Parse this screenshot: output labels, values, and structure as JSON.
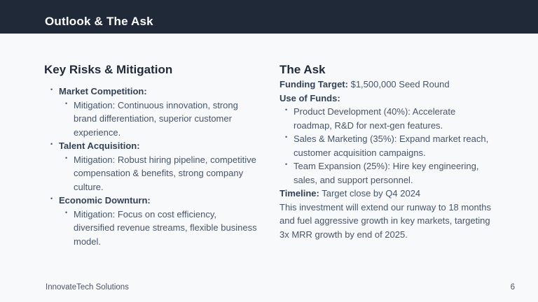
{
  "header": {
    "title": "Outlook & The Ask"
  },
  "glyphs": {
    "bullet": "•"
  },
  "colors": {
    "header_bg": "#1f2937",
    "background": "#f8f9fb",
    "heading_text": "#1f2937",
    "label_text": "#334155",
    "body_text": "#475569"
  },
  "left": {
    "heading": "Key Risks & Mitigation",
    "risks": [
      {
        "label": "Market Competition:",
        "mitigation": "Mitigation: Continuous innovation, strong brand differentiation, superior customer experience."
      },
      {
        "label": "Talent Acquisition:",
        "mitigation": "Mitigation: Robust hiring pipeline, competitive compensation & benefits, strong company culture."
      },
      {
        "label": "Economic Downturn:",
        "mitigation": "Mitigation: Focus on cost efficiency, diversified revenue streams, flexible business model."
      }
    ]
  },
  "right": {
    "heading": "The Ask",
    "funding_label": "Funding Target:",
    "funding_value": "$1,500,000 Seed Round",
    "use_of_funds_label": "Use of Funds:",
    "funds": [
      "Product Development (40%): Accelerate roadmap, R&D for next-gen features.",
      "Sales & Marketing (35%): Expand market reach, customer acquisition campaigns.",
      "Team Expansion (25%): Hire key engineering, sales, and support personnel."
    ],
    "timeline_label": "Timeline:",
    "timeline_value": "Target close by Q4 2024",
    "closing": "This investment will extend our runway to 18 months and fuel aggressive growth in key markets, targeting 3x MRR growth by end of 2025."
  },
  "footer": {
    "company": "InnovateTech Solutions",
    "page_number": "6"
  }
}
